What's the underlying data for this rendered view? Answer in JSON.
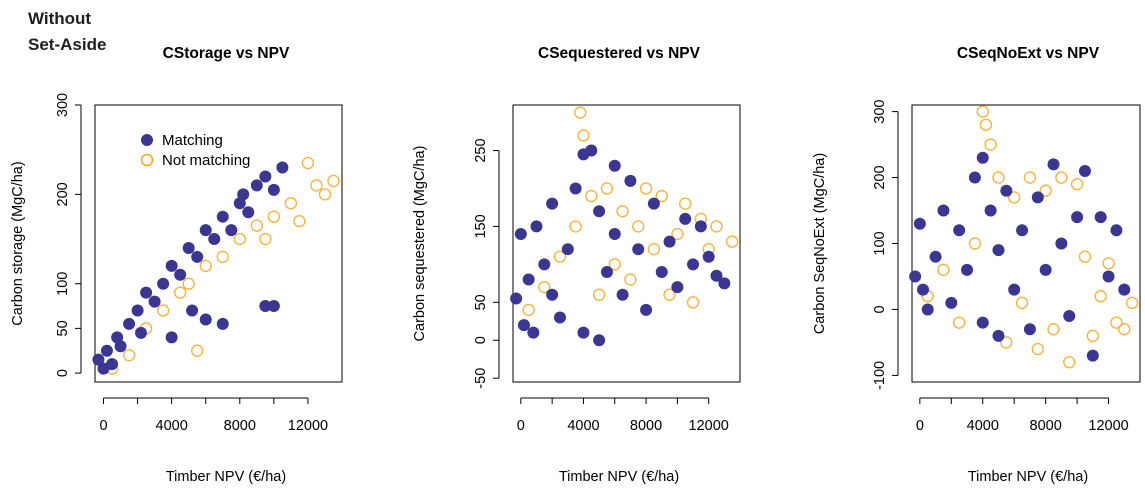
{
  "heading": {
    "line1": "Without",
    "line2": "Set-Aside"
  },
  "colors": {
    "matching": "#3b3690",
    "not_matching": "#f5a623",
    "axis": "#000000"
  },
  "legend": {
    "items": [
      "Matching",
      "Not matching"
    ]
  },
  "chart_data": [
    {
      "type": "scatter",
      "title": "CStorage vs NPV",
      "xlabel": "Timber NPV (€/ha)",
      "ylabel": "Carbon storage (MgC/ha)",
      "xlim": [
        -500,
        14000
      ],
      "ylim": [
        -10,
        300
      ],
      "xticks": [
        0,
        4000,
        8000,
        12000
      ],
      "yticks": [
        0,
        50,
        100,
        200,
        300
      ],
      "legend_position": "top-left",
      "series": [
        {
          "name": "Matching",
          "marker": "filled-circle",
          "points": [
            [
              -300,
              15
            ],
            [
              0,
              5
            ],
            [
              200,
              25
            ],
            [
              500,
              10
            ],
            [
              800,
              40
            ],
            [
              1000,
              30
            ],
            [
              1500,
              55
            ],
            [
              2000,
              70
            ],
            [
              2200,
              45
            ],
            [
              2500,
              90
            ],
            [
              3000,
              80
            ],
            [
              3500,
              100
            ],
            [
              4000,
              120
            ],
            [
              4000,
              40
            ],
            [
              4500,
              110
            ],
            [
              5000,
              140
            ],
            [
              5200,
              70
            ],
            [
              5500,
              130
            ],
            [
              6000,
              160
            ],
            [
              6000,
              60
            ],
            [
              6500,
              150
            ],
            [
              7000,
              175
            ],
            [
              7000,
              55
            ],
            [
              7500,
              160
            ],
            [
              8000,
              190
            ],
            [
              8200,
              200
            ],
            [
              8500,
              180
            ],
            [
              9000,
              210
            ],
            [
              9500,
              220
            ],
            [
              9500,
              75
            ],
            [
              10000,
              75
            ],
            [
              10000,
              205
            ],
            [
              10500,
              230
            ]
          ]
        },
        {
          "name": "Not matching",
          "marker": "open-circle",
          "points": [
            [
              500,
              5
            ],
            [
              1500,
              20
            ],
            [
              2500,
              50
            ],
            [
              3500,
              70
            ],
            [
              4500,
              90
            ],
            [
              5000,
              100
            ],
            [
              5500,
              25
            ],
            [
              6000,
              120
            ],
            [
              7000,
              130
            ],
            [
              8000,
              150
            ],
            [
              9000,
              165
            ],
            [
              9500,
              150
            ],
            [
              10000,
              175
            ],
            [
              11000,
              190
            ],
            [
              11500,
              170
            ],
            [
              12000,
              235
            ],
            [
              12500,
              210
            ],
            [
              13000,
              200
            ],
            [
              13500,
              215
            ]
          ]
        }
      ]
    },
    {
      "type": "scatter",
      "title": "CSequestered vs NPV",
      "xlabel": "Timber NPV (€/ha)",
      "ylabel": "Carbon sequestered (MgC/ha)",
      "xlim": [
        -500,
        14000
      ],
      "ylim": [
        -55,
        310
      ],
      "xticks": [
        0,
        4000,
        8000,
        12000
      ],
      "yticks": [
        -50,
        0,
        50,
        150,
        250
      ],
      "series": [
        {
          "name": "Matching",
          "marker": "filled-circle",
          "points": [
            [
              -300,
              55
            ],
            [
              0,
              140
            ],
            [
              200,
              20
            ],
            [
              500,
              80
            ],
            [
              800,
              10
            ],
            [
              1000,
              150
            ],
            [
              1500,
              100
            ],
            [
              2000,
              60
            ],
            [
              2000,
              180
            ],
            [
              2500,
              30
            ],
            [
              3000,
              120
            ],
            [
              3500,
              200
            ],
            [
              4000,
              245
            ],
            [
              4000,
              10
            ],
            [
              4500,
              250
            ],
            [
              5000,
              170
            ],
            [
              5000,
              0
            ],
            [
              5500,
              90
            ],
            [
              6000,
              140
            ],
            [
              6000,
              230
            ],
            [
              6500,
              60
            ],
            [
              7000,
              210
            ],
            [
              7500,
              120
            ],
            [
              8000,
              40
            ],
            [
              8500,
              180
            ],
            [
              9000,
              90
            ],
            [
              9500,
              130
            ],
            [
              10000,
              70
            ],
            [
              10500,
              160
            ],
            [
              11000,
              100
            ],
            [
              11500,
              150
            ],
            [
              12000,
              110
            ],
            [
              12500,
              85
            ],
            [
              13000,
              75
            ]
          ]
        },
        {
          "name": "Not matching",
          "marker": "open-circle",
          "points": [
            [
              500,
              40
            ],
            [
              1500,
              70
            ],
            [
              2500,
              110
            ],
            [
              3500,
              150
            ],
            [
              3800,
              300
            ],
            [
              4000,
              270
            ],
            [
              4500,
              190
            ],
            [
              5000,
              60
            ],
            [
              5500,
              200
            ],
            [
              6000,
              100
            ],
            [
              6500,
              170
            ],
            [
              7000,
              80
            ],
            [
              7500,
              150
            ],
            [
              8000,
              200
            ],
            [
              8500,
              120
            ],
            [
              9000,
              190
            ],
            [
              9500,
              60
            ],
            [
              10000,
              140
            ],
            [
              10500,
              180
            ],
            [
              11000,
              50
            ],
            [
              11500,
              160
            ],
            [
              12000,
              120
            ],
            [
              12500,
              150
            ],
            [
              13500,
              130
            ]
          ]
        }
      ]
    },
    {
      "type": "scatter",
      "title": "CSeqNoExt vs NPV",
      "xlabel": "Timber NPV (€/ha)",
      "ylabel": "Carbon SeqNoExt (MgC/ha)",
      "xlim": [
        -500,
        14000
      ],
      "ylim": [
        -110,
        310
      ],
      "xticks": [
        0,
        4000,
        8000,
        12000
      ],
      "yticks": [
        -100,
        0,
        100,
        200,
        300
      ],
      "series": [
        {
          "name": "Matching",
          "marker": "filled-circle",
          "points": [
            [
              -300,
              50
            ],
            [
              0,
              130
            ],
            [
              200,
              30
            ],
            [
              500,
              0
            ],
            [
              1000,
              80
            ],
            [
              1500,
              150
            ],
            [
              2000,
              10
            ],
            [
              2500,
              120
            ],
            [
              3000,
              60
            ],
            [
              3500,
              200
            ],
            [
              4000,
              230
            ],
            [
              4000,
              -20
            ],
            [
              4500,
              150
            ],
            [
              5000,
              90
            ],
            [
              5000,
              -40
            ],
            [
              5500,
              180
            ],
            [
              6000,
              30
            ],
            [
              6500,
              120
            ],
            [
              7000,
              -30
            ],
            [
              7500,
              170
            ],
            [
              8000,
              60
            ],
            [
              8500,
              220
            ],
            [
              9000,
              100
            ],
            [
              9500,
              -10
            ],
            [
              10000,
              140
            ],
            [
              10500,
              210
            ],
            [
              11000,
              -70
            ],
            [
              11500,
              140
            ],
            [
              12000,
              50
            ],
            [
              12500,
              120
            ],
            [
              13000,
              30
            ]
          ]
        },
        {
          "name": "Not matching",
          "marker": "open-circle",
          "points": [
            [
              500,
              20
            ],
            [
              1500,
              60
            ],
            [
              2500,
              -20
            ],
            [
              3500,
              100
            ],
            [
              4000,
              300
            ],
            [
              4200,
              280
            ],
            [
              4500,
              250
            ],
            [
              5000,
              200
            ],
            [
              5500,
              -50
            ],
            [
              6000,
              170
            ],
            [
              6500,
              10
            ],
            [
              7000,
              200
            ],
            [
              7500,
              -60
            ],
            [
              8000,
              180
            ],
            [
              8500,
              -30
            ],
            [
              9000,
              200
            ],
            [
              9500,
              -80
            ],
            [
              10000,
              190
            ],
            [
              10500,
              80
            ],
            [
              11000,
              -40
            ],
            [
              11500,
              20
            ],
            [
              12000,
              70
            ],
            [
              12500,
              -20
            ],
            [
              13000,
              -30
            ],
            [
              13500,
              10
            ]
          ]
        }
      ]
    }
  ]
}
